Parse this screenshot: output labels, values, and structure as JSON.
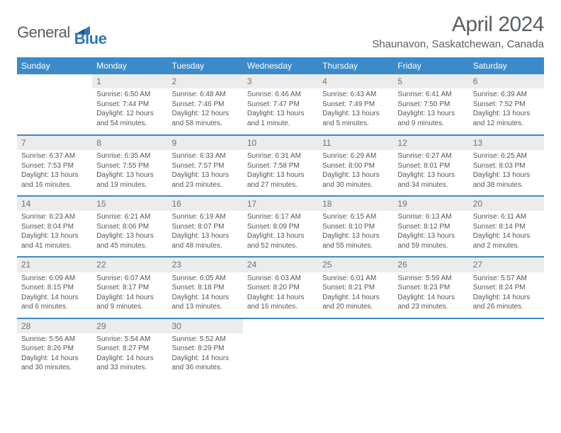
{
  "brand": {
    "general": "General",
    "blue": "Blue"
  },
  "title": "April 2024",
  "subtitle": "Shaunavon, Saskatchewan, Canada",
  "colors": {
    "header_bg": "#3b8bca",
    "header_fg": "#ffffff",
    "text": "#53585b",
    "daynum_bg": "#ececec",
    "rule": "#3b8bca"
  },
  "fonts": {
    "title_size": 30,
    "subtitle_size": 15,
    "th_size": 12,
    "cell_size": 10,
    "daynum_size": 12
  },
  "weekdays": [
    "Sunday",
    "Monday",
    "Tuesday",
    "Wednesday",
    "Thursday",
    "Friday",
    "Saturday"
  ],
  "weeks": [
    [
      {
        "day": "",
        "sunrise": "",
        "sunset": "",
        "daylight": ""
      },
      {
        "day": "1",
        "sunrise": "Sunrise: 6:50 AM",
        "sunset": "Sunset: 7:44 PM",
        "daylight": "Daylight: 12 hours and 54 minutes."
      },
      {
        "day": "2",
        "sunrise": "Sunrise: 6:48 AM",
        "sunset": "Sunset: 7:46 PM",
        "daylight": "Daylight: 12 hours and 58 minutes."
      },
      {
        "day": "3",
        "sunrise": "Sunrise: 6:46 AM",
        "sunset": "Sunset: 7:47 PM",
        "daylight": "Daylight: 13 hours and 1 minute."
      },
      {
        "day": "4",
        "sunrise": "Sunrise: 6:43 AM",
        "sunset": "Sunset: 7:49 PM",
        "daylight": "Daylight: 13 hours and 5 minutes."
      },
      {
        "day": "5",
        "sunrise": "Sunrise: 6:41 AM",
        "sunset": "Sunset: 7:50 PM",
        "daylight": "Daylight: 13 hours and 9 minutes."
      },
      {
        "day": "6",
        "sunrise": "Sunrise: 6:39 AM",
        "sunset": "Sunset: 7:52 PM",
        "daylight": "Daylight: 13 hours and 12 minutes."
      }
    ],
    [
      {
        "day": "7",
        "sunrise": "Sunrise: 6:37 AM",
        "sunset": "Sunset: 7:53 PM",
        "daylight": "Daylight: 13 hours and 16 minutes."
      },
      {
        "day": "8",
        "sunrise": "Sunrise: 6:35 AM",
        "sunset": "Sunset: 7:55 PM",
        "daylight": "Daylight: 13 hours and 19 minutes."
      },
      {
        "day": "9",
        "sunrise": "Sunrise: 6:33 AM",
        "sunset": "Sunset: 7:57 PM",
        "daylight": "Daylight: 13 hours and 23 minutes."
      },
      {
        "day": "10",
        "sunrise": "Sunrise: 6:31 AM",
        "sunset": "Sunset: 7:58 PM",
        "daylight": "Daylight: 13 hours and 27 minutes."
      },
      {
        "day": "11",
        "sunrise": "Sunrise: 6:29 AM",
        "sunset": "Sunset: 8:00 PM",
        "daylight": "Daylight: 13 hours and 30 minutes."
      },
      {
        "day": "12",
        "sunrise": "Sunrise: 6:27 AM",
        "sunset": "Sunset: 8:01 PM",
        "daylight": "Daylight: 13 hours and 34 minutes."
      },
      {
        "day": "13",
        "sunrise": "Sunrise: 6:25 AM",
        "sunset": "Sunset: 8:03 PM",
        "daylight": "Daylight: 13 hours and 38 minutes."
      }
    ],
    [
      {
        "day": "14",
        "sunrise": "Sunrise: 6:23 AM",
        "sunset": "Sunset: 8:04 PM",
        "daylight": "Daylight: 13 hours and 41 minutes."
      },
      {
        "day": "15",
        "sunrise": "Sunrise: 6:21 AM",
        "sunset": "Sunset: 8:06 PM",
        "daylight": "Daylight: 13 hours and 45 minutes."
      },
      {
        "day": "16",
        "sunrise": "Sunrise: 6:19 AM",
        "sunset": "Sunset: 8:07 PM",
        "daylight": "Daylight: 13 hours and 48 minutes."
      },
      {
        "day": "17",
        "sunrise": "Sunrise: 6:17 AM",
        "sunset": "Sunset: 8:09 PM",
        "daylight": "Daylight: 13 hours and 52 minutes."
      },
      {
        "day": "18",
        "sunrise": "Sunrise: 6:15 AM",
        "sunset": "Sunset: 8:10 PM",
        "daylight": "Daylight: 13 hours and 55 minutes."
      },
      {
        "day": "19",
        "sunrise": "Sunrise: 6:13 AM",
        "sunset": "Sunset: 8:12 PM",
        "daylight": "Daylight: 13 hours and 59 minutes."
      },
      {
        "day": "20",
        "sunrise": "Sunrise: 6:11 AM",
        "sunset": "Sunset: 8:14 PM",
        "daylight": "Daylight: 14 hours and 2 minutes."
      }
    ],
    [
      {
        "day": "21",
        "sunrise": "Sunrise: 6:09 AM",
        "sunset": "Sunset: 8:15 PM",
        "daylight": "Daylight: 14 hours and 6 minutes."
      },
      {
        "day": "22",
        "sunrise": "Sunrise: 6:07 AM",
        "sunset": "Sunset: 8:17 PM",
        "daylight": "Daylight: 14 hours and 9 minutes."
      },
      {
        "day": "23",
        "sunrise": "Sunrise: 6:05 AM",
        "sunset": "Sunset: 8:18 PM",
        "daylight": "Daylight: 14 hours and 13 minutes."
      },
      {
        "day": "24",
        "sunrise": "Sunrise: 6:03 AM",
        "sunset": "Sunset: 8:20 PM",
        "daylight": "Daylight: 14 hours and 16 minutes."
      },
      {
        "day": "25",
        "sunrise": "Sunrise: 6:01 AM",
        "sunset": "Sunset: 8:21 PM",
        "daylight": "Daylight: 14 hours and 20 minutes."
      },
      {
        "day": "26",
        "sunrise": "Sunrise: 5:59 AM",
        "sunset": "Sunset: 8:23 PM",
        "daylight": "Daylight: 14 hours and 23 minutes."
      },
      {
        "day": "27",
        "sunrise": "Sunrise: 5:57 AM",
        "sunset": "Sunset: 8:24 PM",
        "daylight": "Daylight: 14 hours and 26 minutes."
      }
    ],
    [
      {
        "day": "28",
        "sunrise": "Sunrise: 5:56 AM",
        "sunset": "Sunset: 8:26 PM",
        "daylight": "Daylight: 14 hours and 30 minutes."
      },
      {
        "day": "29",
        "sunrise": "Sunrise: 5:54 AM",
        "sunset": "Sunset: 8:27 PM",
        "daylight": "Daylight: 14 hours and 33 minutes."
      },
      {
        "day": "30",
        "sunrise": "Sunrise: 5:52 AM",
        "sunset": "Sunset: 8:29 PM",
        "daylight": "Daylight: 14 hours and 36 minutes."
      },
      {
        "day": "",
        "sunrise": "",
        "sunset": "",
        "daylight": ""
      },
      {
        "day": "",
        "sunrise": "",
        "sunset": "",
        "daylight": ""
      },
      {
        "day": "",
        "sunrise": "",
        "sunset": "",
        "daylight": ""
      },
      {
        "day": "",
        "sunrise": "",
        "sunset": "",
        "daylight": ""
      }
    ]
  ]
}
